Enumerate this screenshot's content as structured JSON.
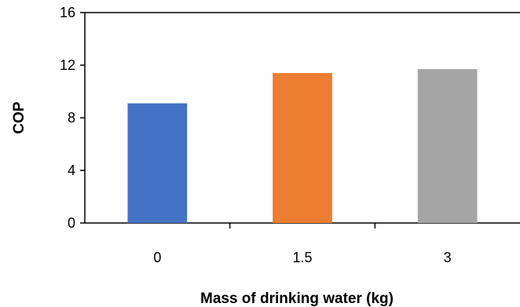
{
  "chart_data": {
    "type": "bar",
    "title": "",
    "xlabel": "Mass of drinking water (kg)",
    "ylabel": "COP",
    "categories": [
      "0",
      "1.5",
      "3"
    ],
    "values": [
      9.1,
      11.4,
      11.7
    ],
    "bar_colors": [
      "#4472C4",
      "#ED7D31",
      "#A5A5A5"
    ],
    "ylim": [
      0,
      16
    ],
    "yticks": [
      0,
      4,
      8,
      12,
      16
    ],
    "grid": false,
    "legend": "none"
  }
}
